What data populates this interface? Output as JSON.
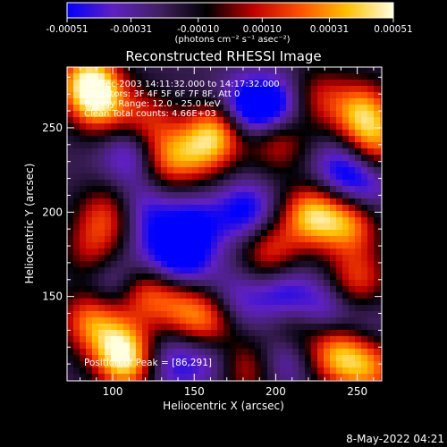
{
  "colorbar": {
    "tick_labels": [
      "-0.00051",
      "-0.00031",
      "-0.00010",
      "0.00010",
      "0.00031",
      "0.00051"
    ],
    "tick_values": [
      -0.00051,
      -0.00031,
      -0.0001,
      0.0001,
      0.00031,
      0.00051
    ],
    "range": [
      -0.00051,
      0.00051
    ],
    "units_label": "(photons cm⁻² s⁻¹ asec⁻²)",
    "colors": [
      "#0000ff",
      "#6020c0",
      "#402060",
      "#000000",
      "#c00000",
      "#ff5000",
      "#ffc000",
      "#ffffe0"
    ]
  },
  "chart_data": {
    "type": "heatmap",
    "title": "Reconstructed RHESSI Image",
    "xlabel": "Heliocentric X (arcsec)",
    "ylabel": "Heliocentric Y (arcsec)",
    "xlim": [
      72,
      265
    ],
    "ylim": [
      100,
      286
    ],
    "xticks": [
      100,
      150,
      200,
      250
    ],
    "yticks": [
      150,
      200,
      250
    ],
    "xtick_labels": [
      "100",
      "150",
      "200",
      "250"
    ],
    "ytick_labels": [
      "150",
      "200",
      "250"
    ],
    "info_lines": [
      "20-Dec-2003 14:11:32.000 to 14:17:32.000",
      "Detectors: 3F 4F 5F 6F 7F 8F, Att 0",
      "Energy Range: 12.0 - 25.0 keV",
      "Clean     Total counts: 4.66E+03"
    ],
    "peak_label": "Position of Peak = [86,291]",
    "peak_position": [
      86,
      291
    ],
    "hotspots": [
      {
        "x": 85,
        "y": 278,
        "amp": 0.00051
      },
      {
        "x": 92,
        "y": 264,
        "amp": 0.0004
      },
      {
        "x": 120,
        "y": 254,
        "amp": 0.00026
      },
      {
        "x": 132,
        "y": 232,
        "amp": 0.00036
      },
      {
        "x": 166,
        "y": 249,
        "amp": 0.00046
      },
      {
        "x": 153,
        "y": 236,
        "amp": 0.00028
      },
      {
        "x": 201,
        "y": 243,
        "amp": 0.0003
      },
      {
        "x": 226,
        "y": 268,
        "amp": 0.00022
      },
      {
        "x": 253,
        "y": 259,
        "amp": 0.00045
      },
      {
        "x": 262,
        "y": 240,
        "amp": 0.00032
      },
      {
        "x": 222,
        "y": 198,
        "amp": 0.0005
      },
      {
        "x": 245,
        "y": 193,
        "amp": 0.0004
      },
      {
        "x": 196,
        "y": 177,
        "amp": 0.0003
      },
      {
        "x": 96,
        "y": 198,
        "amp": 0.00028
      },
      {
        "x": 88,
        "y": 176,
        "amp": 0.00022
      },
      {
        "x": 86,
        "y": 136,
        "amp": 0.00036
      },
      {
        "x": 104,
        "y": 120,
        "amp": 0.00042
      },
      {
        "x": 120,
        "y": 153,
        "amp": 0.00032
      },
      {
        "x": 142,
        "y": 145,
        "amp": 0.00028
      },
      {
        "x": 160,
        "y": 134,
        "amp": 0.00038
      },
      {
        "x": 182,
        "y": 108,
        "amp": 0.00026
      },
      {
        "x": 210,
        "y": 130,
        "amp": 0.00024
      },
      {
        "x": 250,
        "y": 160,
        "amp": 0.0003
      },
      {
        "x": 238,
        "y": 116,
        "amp": 0.00046
      },
      {
        "x": 258,
        "y": 108,
        "amp": 0.00036
      },
      {
        "x": 110,
        "y": 108,
        "amp": 0.0003
      },
      {
        "x": 180,
        "y": 260,
        "amp": -0.00051
      },
      {
        "x": 200,
        "y": 262,
        "amp": -0.00045
      },
      {
        "x": 113,
        "y": 235,
        "amp": -0.0004
      },
      {
        "x": 182,
        "y": 200,
        "amp": -0.0004
      },
      {
        "x": 150,
        "y": 192,
        "amp": -0.00036
      },
      {
        "x": 120,
        "y": 200,
        "amp": -0.0003
      },
      {
        "x": 145,
        "y": 168,
        "amp": -0.00034
      },
      {
        "x": 240,
        "y": 225,
        "amp": -0.00036
      },
      {
        "x": 205,
        "y": 150,
        "amp": -0.00036
      },
      {
        "x": 230,
        "y": 142,
        "amp": -0.0003
      },
      {
        "x": 175,
        "y": 146,
        "amp": -0.0003
      },
      {
        "x": 130,
        "y": 175,
        "amp": -0.0003
      },
      {
        "x": 100,
        "y": 160,
        "amp": -0.0003
      },
      {
        "x": 160,
        "y": 115,
        "amp": -0.0003
      },
      {
        "x": 205,
        "y": 115,
        "amp": -0.00034
      },
      {
        "x": 135,
        "y": 110,
        "amp": -0.0003
      },
      {
        "x": 255,
        "y": 130,
        "amp": -0.0002
      },
      {
        "x": 255,
        "y": 215,
        "amp": -0.0003
      }
    ]
  },
  "timestamp": "8-May-2022 04:21"
}
